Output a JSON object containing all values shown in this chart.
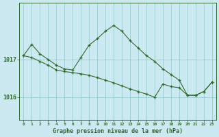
{
  "title": "Graphe pression niveau de la mer (hPa)",
  "background_color": "#cce8f0",
  "plot_bg_color": "#cce8f0",
  "line_color": "#2d6a2d",
  "marker_color": "#2d6a2d",
  "grid_color": "#8cc8c8",
  "ylabel_ticks": [
    1016,
    1017
  ],
  "xlim": [
    -0.5,
    23.5
  ],
  "ylim": [
    1015.4,
    1018.5
  ],
  "hours1": [
    0,
    1,
    2,
    3,
    4,
    5,
    6,
    7,
    8,
    9,
    10,
    11,
    12,
    13,
    14,
    15,
    16,
    17,
    18,
    19,
    20,
    21,
    22,
    23
  ],
  "pressure1": [
    1017.1,
    1017.4,
    1017.15,
    1017.0,
    1016.85,
    1016.75,
    1016.72,
    1017.05,
    1017.38,
    1017.55,
    1017.75,
    1017.9,
    1017.75,
    1017.5,
    1017.3,
    1017.1,
    1016.95,
    1016.75,
    1016.6,
    1016.45,
    1016.05,
    1016.05,
    1016.15,
    1016.4
  ],
  "hours2": [
    0,
    1,
    2,
    3,
    4,
    5,
    6,
    7,
    8,
    9,
    10,
    11,
    12,
    13,
    14,
    15,
    16,
    17,
    18,
    19,
    20,
    21,
    22,
    23
  ],
  "pressure2": [
    1017.1,
    1017.05,
    1016.95,
    1016.85,
    1016.72,
    1016.68,
    1016.65,
    1016.62,
    1016.58,
    1016.52,
    1016.45,
    1016.38,
    1016.3,
    1016.22,
    1016.15,
    1016.08,
    1016.0,
    1016.35,
    1016.28,
    1016.25,
    1016.05,
    1016.05,
    1016.15,
    1016.4
  ],
  "xtick_labels": [
    "0",
    "1",
    "2",
    "3",
    "4",
    "5",
    "6",
    "7",
    "8",
    "9",
    "10",
    "11",
    "12",
    "13",
    "14",
    "15",
    "16",
    "17",
    "18",
    "19",
    "20",
    "21",
    "22",
    "23"
  ]
}
